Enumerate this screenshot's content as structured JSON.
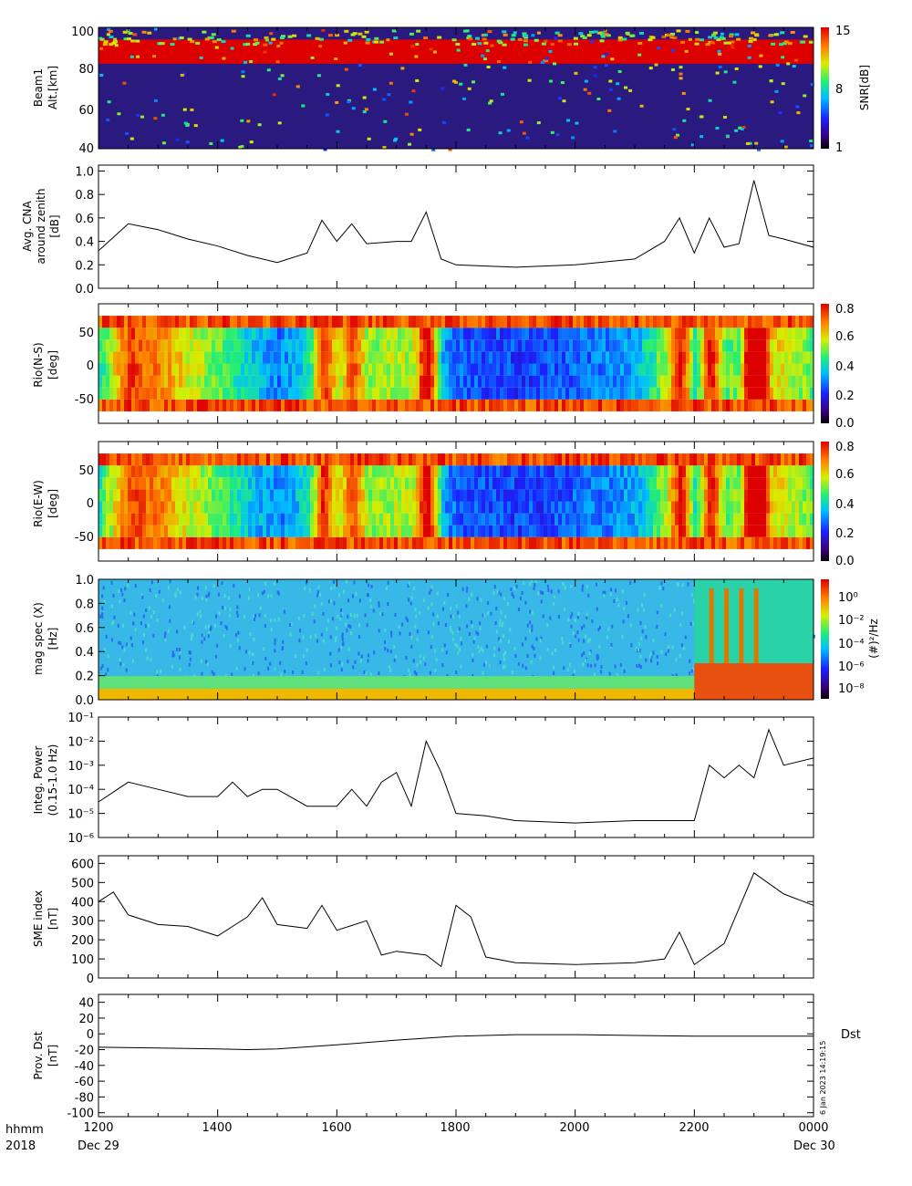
{
  "chart_data": [
    {
      "type": "heatmap",
      "ylabel": [
        "Beam1",
        "Alt.[km]"
      ],
      "yticks": [
        "100",
        "80",
        "60",
        "40"
      ],
      "ylim": [
        40,
        100
      ],
      "colorbar": {
        "label": "SNR[dB]",
        "ticks": [
          "15",
          "8",
          "1"
        ],
        "range": [
          1,
          15
        ]
      },
      "features": [
        {
          "description": "persistent saturated layer",
          "alt_km": [
            82,
            94
          ],
          "snr_db": 15
        }
      ]
    },
    {
      "type": "line",
      "ylabel": [
        "Avg. CNA",
        "around zenith",
        "[dB]"
      ],
      "yticks": [
        "1.0",
        "0.8",
        "0.6",
        "0.4",
        "0.2",
        "0.0"
      ],
      "ylim": [
        0,
        1.05
      ],
      "x": [
        "1200",
        "1230",
        "1300",
        "1330",
        "1400",
        "1430",
        "1500",
        "1530",
        "1545",
        "1600",
        "1615",
        "1630",
        "1700",
        "1715",
        "1730",
        "1745",
        "1800",
        "1900",
        "2000",
        "2100",
        "2130",
        "2145",
        "2200",
        "2215",
        "2230",
        "2245",
        "2300",
        "2315",
        "2330",
        "0000"
      ],
      "values": [
        0.32,
        0.55,
        0.5,
        0.42,
        0.36,
        0.28,
        0.22,
        0.3,
        0.58,
        0.4,
        0.55,
        0.38,
        0.4,
        0.4,
        0.65,
        0.25,
        0.2,
        0.18,
        0.2,
        0.25,
        0.4,
        0.6,
        0.3,
        0.6,
        0.35,
        0.38,
        0.92,
        0.45,
        0.42,
        0.35
      ]
    },
    {
      "type": "heatmap",
      "ylabel": [
        "Rio(N-S)",
        "[deg]"
      ],
      "yticks": [
        "50",
        "0",
        "-50"
      ],
      "ylim": [
        -75,
        75
      ],
      "colorbar": {
        "ticks": [
          "0.8",
          "0.6",
          "0.4",
          "0.2",
          "0.0"
        ],
        "range": [
          0,
          0.8
        ]
      }
    },
    {
      "type": "heatmap",
      "ylabel": [
        "Rio(E-W)",
        "[deg]"
      ],
      "yticks": [
        "50",
        "0",
        "-50"
      ],
      "ylim": [
        -75,
        75
      ],
      "colorbar": {
        "ticks": [
          "0.8",
          "0.6",
          "0.4",
          "0.2",
          "0.0"
        ],
        "range": [
          0,
          0.8
        ]
      }
    },
    {
      "type": "heatmap",
      "ylabel": [
        "mag spec (X)",
        "[Hz]"
      ],
      "yticks": [
        "1.0",
        "0.8",
        "0.6",
        "0.4",
        "0.2",
        "0.0"
      ],
      "ylim": [
        0,
        1.0
      ],
      "colorbar": {
        "label": "(#)²/Hz",
        "ticks": [
          "10⁰",
          "10⁻²",
          "10⁻⁴",
          "10⁻⁶",
          "10⁻⁸"
        ],
        "scale": "log"
      }
    },
    {
      "type": "line",
      "ylabel": [
        "Integ. Power",
        "(0.15-1.0 Hz)"
      ],
      "yscale": "log",
      "yticks": [
        "10⁻¹",
        "10⁻²",
        "10⁻³",
        "10⁻⁴",
        "10⁻⁵",
        "10⁻⁶"
      ],
      "ylim": [
        1e-06,
        0.1
      ],
      "x": [
        "1200",
        "1230",
        "1300",
        "1330",
        "1400",
        "1415",
        "1430",
        "1445",
        "1500",
        "1530",
        "1545",
        "1600",
        "1615",
        "1630",
        "1645",
        "1700",
        "1715",
        "1730",
        "1745",
        "1800",
        "1830",
        "1900",
        "2000",
        "2100",
        "2145",
        "2200",
        "2215",
        "2230",
        "2245",
        "2300",
        "2315",
        "2330",
        "0000"
      ],
      "values": [
        3e-05,
        0.0002,
        0.0001,
        5e-05,
        5e-05,
        0.0002,
        5e-05,
        0.0001,
        0.0001,
        2e-05,
        2e-05,
        2e-05,
        0.0001,
        2e-05,
        0.0002,
        0.0005,
        2e-05,
        0.01,
        0.0005,
        1e-05,
        8e-06,
        5e-06,
        4e-06,
        5e-06,
        5e-06,
        5e-06,
        0.001,
        0.0003,
        0.001,
        0.0003,
        0.03,
        0.001,
        0.002
      ]
    },
    {
      "type": "line",
      "ylabel": [
        "SME index",
        "[nT]"
      ],
      "yticks": [
        "600",
        "500",
        "400",
        "300",
        "200",
        "100",
        "0"
      ],
      "ylim": [
        0,
        640
      ],
      "x": [
        "1200",
        "1215",
        "1230",
        "1300",
        "1330",
        "1400",
        "1430",
        "1445",
        "1500",
        "1530",
        "1545",
        "1600",
        "1630",
        "1645",
        "1700",
        "1730",
        "1745",
        "1800",
        "1815",
        "1830",
        "1900",
        "2000",
        "2100",
        "2130",
        "2145",
        "2200",
        "2230",
        "2300",
        "2330",
        "0000"
      ],
      "values": [
        400,
        450,
        330,
        280,
        270,
        220,
        320,
        420,
        280,
        260,
        380,
        250,
        300,
        120,
        140,
        120,
        60,
        380,
        320,
        110,
        80,
        70,
        80,
        100,
        240,
        70,
        180,
        550,
        440,
        380
      ]
    },
    {
      "type": "line",
      "ylabel": [
        "Prov. Dst",
        "[nT]"
      ],
      "yticks": [
        "40",
        "20",
        "0",
        "-20",
        "-40",
        "-60",
        "-80",
        "-100"
      ],
      "ylim": [
        -105,
        50
      ],
      "legend": "Dst",
      "stamp": "6 Jan 2023 14:19:15",
      "x": [
        "1200",
        "1300",
        "1400",
        "1430",
        "1500",
        "1600",
        "1700",
        "1800",
        "1900",
        "2000",
        "2100",
        "2200",
        "2300",
        "0000"
      ],
      "values": [
        -17,
        -18,
        -19,
        -20,
        -19,
        -14,
        -8,
        -3,
        -1,
        -1,
        -2,
        -3,
        -3,
        -3
      ]
    }
  ],
  "xaxis": {
    "ticks": [
      "1200",
      "1400",
      "1600",
      "1800",
      "2000",
      "2200",
      "0000"
    ],
    "label_top": "hhmm",
    "label_bottom": "2018",
    "date_start": "Dec 29",
    "date_end": "Dec 30"
  }
}
